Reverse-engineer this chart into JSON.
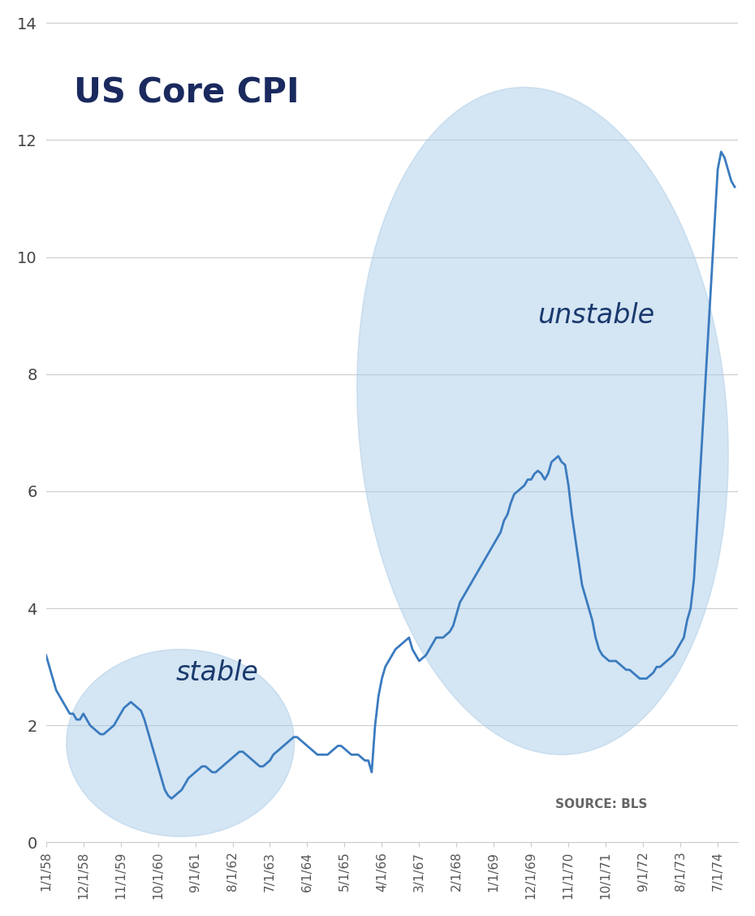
{
  "title": "US Core CPI",
  "title_color": "#1a2a5e",
  "title_fontsize": 30,
  "source_text": "SOURCE: BLS",
  "ylim": [
    0,
    14
  ],
  "yticks": [
    0,
    2,
    4,
    6,
    8,
    10,
    12,
    14
  ],
  "line_color": "#3a7bbf",
  "line_width": 2.0,
  "bg_color": "#ffffff",
  "ellipse_color": "#aacce8",
  "ellipse_alpha": 0.5,
  "stable_label": "stable",
  "unstable_label": "unstable",
  "label_color": "#1a3a6e",
  "label_fontsize": 24,
  "source_fontsize": 11,
  "cpi_data": [
    [
      1958,
      1,
      3.2
    ],
    [
      1958,
      2,
      3.0
    ],
    [
      1958,
      3,
      2.8
    ],
    [
      1958,
      4,
      2.6
    ],
    [
      1958,
      5,
      2.5
    ],
    [
      1958,
      6,
      2.4
    ],
    [
      1958,
      7,
      2.3
    ],
    [
      1958,
      8,
      2.2
    ],
    [
      1958,
      9,
      2.2
    ],
    [
      1958,
      10,
      2.1
    ],
    [
      1958,
      11,
      2.1
    ],
    [
      1958,
      12,
      2.2
    ],
    [
      1959,
      1,
      2.1
    ],
    [
      1959,
      2,
      2.0
    ],
    [
      1959,
      3,
      1.95
    ],
    [
      1959,
      4,
      1.9
    ],
    [
      1959,
      5,
      1.85
    ],
    [
      1959,
      6,
      1.85
    ],
    [
      1959,
      7,
      1.9
    ],
    [
      1959,
      8,
      1.95
    ],
    [
      1959,
      9,
      2.0
    ],
    [
      1959,
      10,
      2.1
    ],
    [
      1959,
      11,
      2.2
    ],
    [
      1959,
      12,
      2.3
    ],
    [
      1960,
      1,
      2.35
    ],
    [
      1960,
      2,
      2.4
    ],
    [
      1960,
      3,
      2.35
    ],
    [
      1960,
      4,
      2.3
    ],
    [
      1960,
      5,
      2.25
    ],
    [
      1960,
      6,
      2.1
    ],
    [
      1960,
      7,
      1.9
    ],
    [
      1960,
      8,
      1.7
    ],
    [
      1960,
      9,
      1.5
    ],
    [
      1960,
      10,
      1.3
    ],
    [
      1960,
      11,
      1.1
    ],
    [
      1960,
      12,
      0.9
    ],
    [
      1961,
      1,
      0.8
    ],
    [
      1961,
      2,
      0.75
    ],
    [
      1961,
      3,
      0.8
    ],
    [
      1961,
      4,
      0.85
    ],
    [
      1961,
      5,
      0.9
    ],
    [
      1961,
      6,
      1.0
    ],
    [
      1961,
      7,
      1.1
    ],
    [
      1961,
      8,
      1.15
    ],
    [
      1961,
      9,
      1.2
    ],
    [
      1961,
      10,
      1.25
    ],
    [
      1961,
      11,
      1.3
    ],
    [
      1961,
      12,
      1.3
    ],
    [
      1962,
      1,
      1.25
    ],
    [
      1962,
      2,
      1.2
    ],
    [
      1962,
      3,
      1.2
    ],
    [
      1962,
      4,
      1.25
    ],
    [
      1962,
      5,
      1.3
    ],
    [
      1962,
      6,
      1.35
    ],
    [
      1962,
      7,
      1.4
    ],
    [
      1962,
      8,
      1.45
    ],
    [
      1962,
      9,
      1.5
    ],
    [
      1962,
      10,
      1.55
    ],
    [
      1962,
      11,
      1.55
    ],
    [
      1962,
      12,
      1.5
    ],
    [
      1963,
      1,
      1.45
    ],
    [
      1963,
      2,
      1.4
    ],
    [
      1963,
      3,
      1.35
    ],
    [
      1963,
      4,
      1.3
    ],
    [
      1963,
      5,
      1.3
    ],
    [
      1963,
      6,
      1.35
    ],
    [
      1963,
      7,
      1.4
    ],
    [
      1963,
      8,
      1.5
    ],
    [
      1963,
      9,
      1.55
    ],
    [
      1963,
      10,
      1.6
    ],
    [
      1963,
      11,
      1.65
    ],
    [
      1963,
      12,
      1.7
    ],
    [
      1964,
      1,
      1.75
    ],
    [
      1964,
      2,
      1.8
    ],
    [
      1964,
      3,
      1.8
    ],
    [
      1964,
      4,
      1.75
    ],
    [
      1964,
      5,
      1.7
    ],
    [
      1964,
      6,
      1.65
    ],
    [
      1964,
      7,
      1.6
    ],
    [
      1964,
      8,
      1.55
    ],
    [
      1964,
      9,
      1.5
    ],
    [
      1964,
      10,
      1.5
    ],
    [
      1964,
      11,
      1.5
    ],
    [
      1964,
      12,
      1.5
    ],
    [
      1965,
      1,
      1.55
    ],
    [
      1965,
      2,
      1.6
    ],
    [
      1965,
      3,
      1.65
    ],
    [
      1965,
      4,
      1.65
    ],
    [
      1965,
      5,
      1.6
    ],
    [
      1965,
      6,
      1.55
    ],
    [
      1965,
      7,
      1.5
    ],
    [
      1965,
      8,
      1.5
    ],
    [
      1965,
      9,
      1.5
    ],
    [
      1965,
      10,
      1.45
    ],
    [
      1965,
      11,
      1.4
    ],
    [
      1965,
      12,
      1.4
    ],
    [
      1966,
      1,
      1.2
    ],
    [
      1966,
      2,
      2.0
    ],
    [
      1966,
      3,
      2.5
    ],
    [
      1966,
      4,
      2.8
    ],
    [
      1966,
      5,
      3.0
    ],
    [
      1966,
      6,
      3.1
    ],
    [
      1966,
      7,
      3.2
    ],
    [
      1966,
      8,
      3.3
    ],
    [
      1966,
      9,
      3.35
    ],
    [
      1966,
      10,
      3.4
    ],
    [
      1966,
      11,
      3.45
    ],
    [
      1966,
      12,
      3.5
    ],
    [
      1967,
      1,
      3.3
    ],
    [
      1967,
      2,
      3.2
    ],
    [
      1967,
      3,
      3.1
    ],
    [
      1967,
      4,
      3.15
    ],
    [
      1967,
      5,
      3.2
    ],
    [
      1967,
      6,
      3.3
    ],
    [
      1967,
      7,
      3.4
    ],
    [
      1967,
      8,
      3.5
    ],
    [
      1967,
      9,
      3.5
    ],
    [
      1967,
      10,
      3.5
    ],
    [
      1967,
      11,
      3.55
    ],
    [
      1967,
      12,
      3.6
    ],
    [
      1968,
      1,
      3.7
    ],
    [
      1968,
      2,
      3.9
    ],
    [
      1968,
      3,
      4.1
    ],
    [
      1968,
      4,
      4.2
    ],
    [
      1968,
      5,
      4.3
    ],
    [
      1968,
      6,
      4.4
    ],
    [
      1968,
      7,
      4.5
    ],
    [
      1968,
      8,
      4.6
    ],
    [
      1968,
      9,
      4.7
    ],
    [
      1968,
      10,
      4.8
    ],
    [
      1968,
      11,
      4.9
    ],
    [
      1968,
      12,
      5.0
    ],
    [
      1969,
      1,
      5.1
    ],
    [
      1969,
      2,
      5.2
    ],
    [
      1969,
      3,
      5.3
    ],
    [
      1969,
      4,
      5.5
    ],
    [
      1969,
      5,
      5.6
    ],
    [
      1969,
      6,
      5.8
    ],
    [
      1969,
      7,
      5.95
    ],
    [
      1969,
      8,
      6.0
    ],
    [
      1969,
      9,
      6.05
    ],
    [
      1969,
      10,
      6.1
    ],
    [
      1969,
      11,
      6.2
    ],
    [
      1969,
      12,
      6.2
    ],
    [
      1970,
      1,
      6.3
    ],
    [
      1970,
      2,
      6.35
    ],
    [
      1970,
      3,
      6.3
    ],
    [
      1970,
      4,
      6.2
    ],
    [
      1970,
      5,
      6.3
    ],
    [
      1970,
      6,
      6.5
    ],
    [
      1970,
      7,
      6.55
    ],
    [
      1970,
      8,
      6.6
    ],
    [
      1970,
      9,
      6.5
    ],
    [
      1970,
      10,
      6.45
    ],
    [
      1970,
      11,
      6.1
    ],
    [
      1970,
      12,
      5.6
    ],
    [
      1971,
      1,
      5.2
    ],
    [
      1971,
      2,
      4.8
    ],
    [
      1971,
      3,
      4.4
    ],
    [
      1971,
      4,
      4.2
    ],
    [
      1971,
      5,
      4.0
    ],
    [
      1971,
      6,
      3.8
    ],
    [
      1971,
      7,
      3.5
    ],
    [
      1971,
      8,
      3.3
    ],
    [
      1971,
      9,
      3.2
    ],
    [
      1971,
      10,
      3.15
    ],
    [
      1971,
      11,
      3.1
    ],
    [
      1971,
      12,
      3.1
    ],
    [
      1972,
      1,
      3.1
    ],
    [
      1972,
      2,
      3.05
    ],
    [
      1972,
      3,
      3.0
    ],
    [
      1972,
      4,
      2.95
    ],
    [
      1972,
      5,
      2.95
    ],
    [
      1972,
      6,
      2.9
    ],
    [
      1972,
      7,
      2.85
    ],
    [
      1972,
      8,
      2.8
    ],
    [
      1972,
      9,
      2.8
    ],
    [
      1972,
      10,
      2.8
    ],
    [
      1972,
      11,
      2.85
    ],
    [
      1972,
      12,
      2.9
    ],
    [
      1973,
      1,
      3.0
    ],
    [
      1973,
      2,
      3.0
    ],
    [
      1973,
      3,
      3.05
    ],
    [
      1973,
      4,
      3.1
    ],
    [
      1973,
      5,
      3.15
    ],
    [
      1973,
      6,
      3.2
    ],
    [
      1973,
      7,
      3.3
    ],
    [
      1973,
      8,
      3.4
    ],
    [
      1973,
      9,
      3.5
    ],
    [
      1973,
      10,
      3.8
    ],
    [
      1973,
      11,
      4.0
    ],
    [
      1973,
      12,
      4.5
    ],
    [
      1974,
      1,
      5.5
    ],
    [
      1974,
      2,
      6.5
    ],
    [
      1974,
      3,
      7.5
    ],
    [
      1974,
      4,
      8.5
    ],
    [
      1974,
      5,
      9.5
    ],
    [
      1974,
      6,
      10.5
    ],
    [
      1974,
      7,
      11.5
    ],
    [
      1974,
      8,
      11.8
    ],
    [
      1974,
      9,
      11.7
    ],
    [
      1974,
      10,
      11.5
    ],
    [
      1974,
      11,
      11.3
    ],
    [
      1974,
      12,
      11.2
    ]
  ],
  "xtick_labels": [
    "1/1/58",
    "12/1/58",
    "11/1/59",
    "10/1/60",
    "9/1/61",
    "8/1/62",
    "7/1/63",
    "6/1/64",
    "5/1/65",
    "4/1/66",
    "3/1/67",
    "2/1/68",
    "1/1/69",
    "12/1/69",
    "11/1/70",
    "10/1/71",
    "9/1/72",
    "8/1/73",
    "7/1/74"
  ]
}
